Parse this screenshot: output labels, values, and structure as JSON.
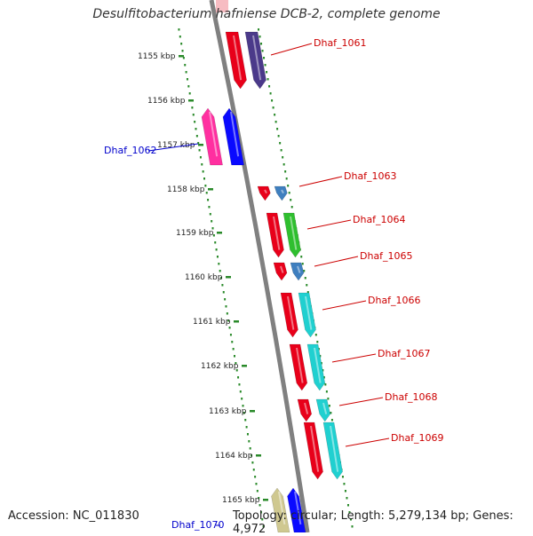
{
  "title": "Desulfitobacterium hafniense DCB-2, complete genome",
  "footer": {
    "accession": "Accession: NC_011830",
    "topology": "Topology: circular; Length: 5,279,134 bp; Genes: 4,972"
  },
  "colors": {
    "backbone": "#808080",
    "tick": "#2a8a2a",
    "label_forward": "#cc0000",
    "label_reverse": "#0000cc"
  },
  "scale_labels": [
    "1155 kbp",
    "1156 kbp",
    "1157 kbp",
    "1158 kbp",
    "1159 kbp",
    "1160 kbp",
    "1161 kbp",
    "1162 kbp",
    "1163 kbp",
    "1164 kbp",
    "1165 kbp"
  ],
  "genes": [
    {
      "label": "Dhaf_1061",
      "strand": "forward",
      "colors": [
        "#e8001a",
        "#4b3a8a"
      ]
    },
    {
      "label": "Dhaf_1062",
      "strand": "reverse",
      "colors": [
        "#ff2fa0",
        "#0a0aff"
      ]
    },
    {
      "label": "Dhaf_1063",
      "strand": "forward",
      "colors": [
        "#e8001a",
        "#3f7fbf"
      ]
    },
    {
      "label": "Dhaf_1064",
      "strand": "forward",
      "colors": [
        "#e8001a",
        "#2fbf2f"
      ]
    },
    {
      "label": "Dhaf_1065",
      "strand": "forward",
      "colors": [
        "#e8001a",
        "#3f7fbf"
      ]
    },
    {
      "label": "Dhaf_1066",
      "strand": "forward",
      "colors": [
        "#e8001a",
        "#20d0d0"
      ]
    },
    {
      "label": "Dhaf_1067",
      "strand": "forward",
      "colors": [
        "#e8001a",
        "#20d0d0"
      ]
    },
    {
      "label": "Dhaf_1068",
      "strand": "forward",
      "colors": [
        "#e8001a",
        "#20d0d0"
      ]
    },
    {
      "label": "Dhaf_1069",
      "strand": "forward",
      "colors": [
        "#e8001a",
        "#20d0d0"
      ]
    },
    {
      "label": "Dhaf_1070",
      "strand": "reverse",
      "colors": [
        "#cfc890",
        "#0a0aff"
      ]
    }
  ]
}
